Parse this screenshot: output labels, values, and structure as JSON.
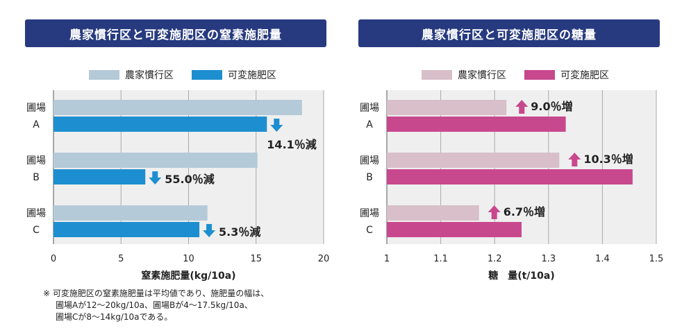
{
  "chart_data": [
    {
      "type": "bar",
      "title": "農家慣行区と可変施肥区の窒素施肥量",
      "xlabel": "窒素施肥量(kg/10a)",
      "xlim": [
        0,
        20
      ],
      "xticks": [
        "0",
        "5",
        "10",
        "15",
        "20"
      ],
      "categories": [
        [
          "圃場",
          "A"
        ],
        [
          "圃場",
          "B"
        ],
        [
          "圃場",
          "C"
        ]
      ],
      "series": [
        {
          "name": "農家慣行区",
          "color": "#b5cad8",
          "values": [
            18.4,
            15.1,
            11.4
          ]
        },
        {
          "name": "可変施肥区",
          "color": "#1d8fd0",
          "values": [
            15.8,
            6.8,
            10.8
          ]
        }
      ],
      "annotations": [
        {
          "text": "14.1％減",
          "arrow": "down",
          "arrow_color": "#1d8fd0"
        },
        {
          "text": "55.0％減",
          "arrow": "down",
          "arrow_color": "#1d8fd0"
        },
        {
          "text": "5.3％減",
          "arrow": "down",
          "arrow_color": "#1d8fd0"
        }
      ],
      "grid": true,
      "legend": "top"
    },
    {
      "type": "bar",
      "title": "農家慣行区と可変施肥区の糖量",
      "xlabel": "糖　量(t/10a)",
      "xlim": [
        1,
        1.5
      ],
      "xticks": [
        "1",
        "1.1",
        "1.2",
        "1.3",
        "1.4",
        "1.5"
      ],
      "categories": [
        [
          "圃場",
          "A"
        ],
        [
          "圃場",
          "B"
        ],
        [
          "圃場",
          "C"
        ]
      ],
      "series": [
        {
          "name": "農家慣行区",
          "color": "#d8bfc9",
          "values": [
            1.222,
            1.32,
            1.171
          ]
        },
        {
          "name": "可変施肥区",
          "color": "#c8488e",
          "values": [
            1.332,
            1.456,
            1.25
          ]
        }
      ],
      "annotations": [
        {
          "text": "9.0％増",
          "arrow": "up",
          "arrow_color": "#c8488e"
        },
        {
          "text": "10.3％増",
          "arrow": "up",
          "arrow_color": "#c8488e"
        },
        {
          "text": "6.7％増",
          "arrow": "up",
          "arrow_color": "#c8488e"
        }
      ],
      "grid": true,
      "legend": "top"
    }
  ],
  "note": {
    "mark": "※",
    "line1": "可変施肥区の窒素施肥量は平均値であり、施肥量の幅は、",
    "line2": "圃場Aが12～20kg/10a、圃場Bが4～17.5kg/10a、",
    "line3": "圃場Cが8～14kg/10aである。"
  }
}
